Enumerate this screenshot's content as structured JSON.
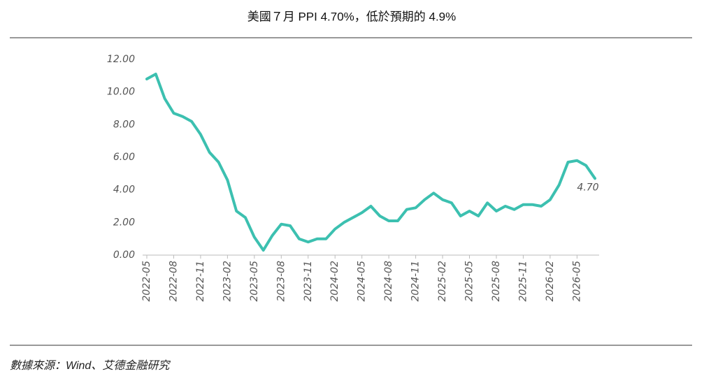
{
  "chart_data": {
    "type": "line",
    "title": "美國７月 PPI 4.70%，低於預期的 4.9%",
    "source": "數據來源：Wind、艾德金融研究",
    "categories": [
      "2022-05",
      null,
      null,
      "2022-08",
      null,
      null,
      "2022-11",
      null,
      null,
      "2023-02",
      null,
      null,
      "2023-05",
      null,
      null,
      "2023-08",
      null,
      null,
      "2023-11",
      null,
      null,
      "2024-02",
      null,
      null,
      "2024-05",
      null,
      null,
      "2024-08",
      null,
      null,
      "2024-11",
      null,
      null,
      "2025-02",
      null,
      null,
      "2025-05",
      null,
      null,
      "2025-08",
      null,
      null,
      "2025-11",
      null,
      null,
      "2026-02",
      null,
      null,
      "2026-05",
      null,
      null
    ],
    "series": [
      {
        "name": "PPI",
        "color": "#3cc0b0",
        "values": [
          10.8,
          11.1,
          9.6,
          8.7,
          8.5,
          8.2,
          7.4,
          6.3,
          5.7,
          4.6,
          2.7,
          2.3,
          1.1,
          0.3,
          1.2,
          1.9,
          1.8,
          1.0,
          0.8,
          1.0,
          1.0,
          1.6,
          2.0,
          2.3,
          2.6,
          3.0,
          2.4,
          2.1,
          2.1,
          2.8,
          2.9,
          3.4,
          3.8,
          3.4,
          3.2,
          2.4,
          2.7,
          2.4,
          3.2,
          2.7,
          3.0,
          2.8,
          3.1,
          3.1,
          3.0,
          3.4,
          4.3,
          5.7,
          5.8,
          5.5,
          4.7
        ],
        "value_labels": [
          null,
          null,
          null,
          null,
          null,
          null,
          null,
          null,
          null,
          null,
          null,
          null,
          null,
          null,
          null,
          null,
          null,
          null,
          null,
          null,
          null,
          null,
          null,
          null,
          null,
          null,
          null,
          null,
          null,
          null,
          null,
          null,
          null,
          null,
          null,
          null,
          null,
          null,
          null,
          null,
          null,
          null,
          null,
          null,
          null,
          null,
          null,
          null,
          null,
          null,
          "4.70"
        ]
      }
    ],
    "ylim": [
      0,
      12
    ],
    "yticks": [
      {
        "value": 0,
        "label": "0.00"
      },
      {
        "value": 2,
        "label": "2.00"
      },
      {
        "value": 4,
        "label": "4.00"
      },
      {
        "value": 6,
        "label": "6.00"
      },
      {
        "value": 8,
        "label": "8.00"
      },
      {
        "value": 10,
        "label": "10.00"
      },
      {
        "value": 12,
        "label": "12.00"
      }
    ],
    "grid": false
  }
}
